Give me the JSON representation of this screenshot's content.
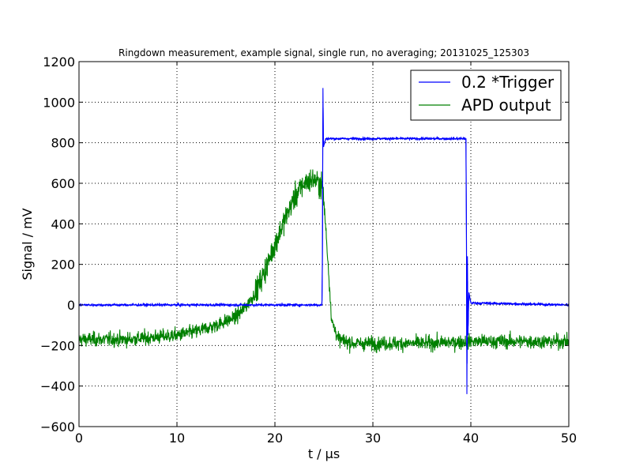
{
  "chart_data": {
    "type": "line",
    "title": "Ringdown measurement, example signal, single run, no averaging; 20131025_125303",
    "xlabel": "t / μs",
    "ylabel": "Signal / mV",
    "xlim": [
      0,
      50
    ],
    "ylim": [
      -600,
      1200
    ],
    "xticks": [
      0,
      10,
      20,
      30,
      40,
      50
    ],
    "yticks": [
      -600,
      -400,
      -200,
      0,
      200,
      400,
      600,
      800,
      1000,
      1200
    ],
    "grid": true,
    "legend_position": "top-right",
    "series": [
      {
        "name": "0.2 *Trigger",
        "color": "#0000ff",
        "points": [
          [
            0,
            0
          ],
          [
            24.8,
            0
          ],
          [
            24.85,
            200
          ],
          [
            24.9,
            1070
          ],
          [
            24.95,
            780
          ],
          [
            25.2,
            820
          ],
          [
            39.5,
            820
          ],
          [
            39.55,
            400
          ],
          [
            39.6,
            -440
          ],
          [
            39.65,
            240
          ],
          [
            39.7,
            -150
          ],
          [
            39.8,
            60
          ],
          [
            40.0,
            10
          ],
          [
            50,
            0
          ]
        ]
      },
      {
        "name": "APD output",
        "color": "#008000",
        "points": [
          [
            0,
            -170
          ],
          [
            5,
            -170
          ],
          [
            10,
            -150
          ],
          [
            12,
            -130
          ],
          [
            14,
            -100
          ],
          [
            16,
            -60
          ],
          [
            17,
            -10
          ],
          [
            18,
            60
          ],
          [
            19,
            170
          ],
          [
            20,
            300
          ],
          [
            21,
            420
          ],
          [
            22,
            530
          ],
          [
            23,
            600
          ],
          [
            24,
            620
          ],
          [
            24.9,
            580
          ],
          [
            25.3,
            300
          ],
          [
            25.8,
            -80
          ],
          [
            26.5,
            -170
          ],
          [
            28,
            -190
          ],
          [
            30,
            -190
          ],
          [
            35,
            -190
          ],
          [
            40,
            -180
          ],
          [
            45,
            -180
          ],
          [
            50,
            -180
          ]
        ]
      }
    ]
  }
}
